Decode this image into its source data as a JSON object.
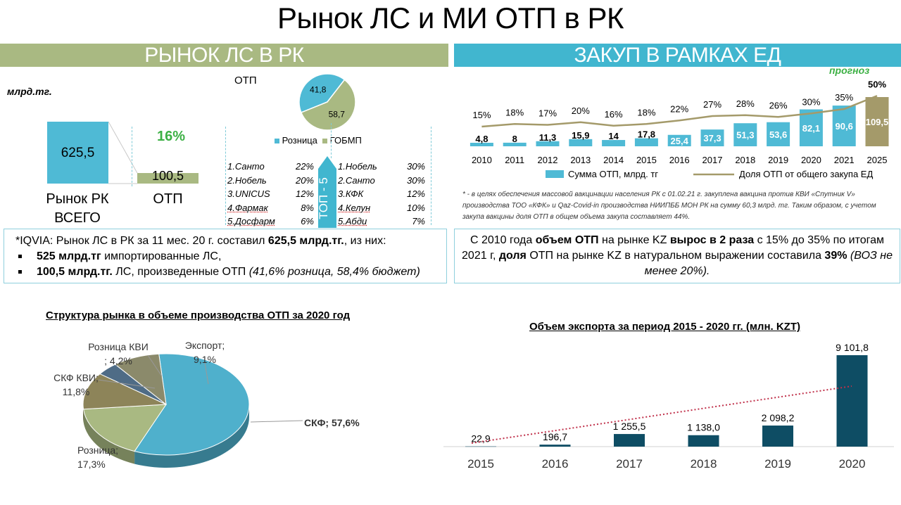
{
  "title": "Рынок ЛС и МИ ОТП в РК",
  "left": {
    "header": "РЫНОК ЛС В РК",
    "unit": "млрд.тг.",
    "total_value": "625,5",
    "total_label": "Рынок РК ВСЕГО",
    "otp_share": "16%",
    "otp_value": "100,5",
    "otp_label": "ОТП",
    "pie_title": "ОТП",
    "top5_label": "ТОП - 5",
    "top5_retail": [
      {
        "name": "1.Санто",
        "pct": "22%"
      },
      {
        "name": "2.Нобель",
        "pct": "20%"
      },
      {
        "name": "3.UNICUS",
        "pct": "12%"
      },
      {
        "name": "4.Фармак",
        "pct": "8%"
      },
      {
        "name": "5.Досфарм",
        "pct": "6%"
      }
    ],
    "top5_gobmp": [
      {
        "name": "1.Нобель",
        "pct": "30%"
      },
      {
        "name": "2.Санто",
        "pct": "30%"
      },
      {
        "name": "3.КФК",
        "pct": "12%"
      },
      {
        "name": "4.Келун",
        "pct": "10%"
      },
      {
        "name": "5.Абди",
        "pct": "7%"
      }
    ],
    "info": {
      "line1_pre": "*IQVIA: Рынок ЛС в РК за 11 мес. 20 г. составил ",
      "line1_bold": "625,5 млрд.тг.",
      "line1_post": ", из них:",
      "b1_bold": "525 млрд.тг",
      "b1_rest": " импортированные ЛС,",
      "b2_bold": "100,5 млрд.тг.",
      "b2_rest": " ЛС, произведенные ОТП ",
      "b2_ital": "(41,6% розница, 58,4% бюджет)"
    }
  },
  "right": {
    "header": "ЗАКУП В РАМКАХ ЕД",
    "forecast": "прогноз",
    "footnote": "* - в целях обеспечения массовой вакцинации населения РК с 01.02.21 г. закуплена вакцина против КВИ «Спутник V» производства ТОО «КФК» и Qaz-Covid-in производства НИИПББ МОН РК на сумму 60,3 млрд. тг. Таким образом, с учетом закупа вакцины доля ОТП в общем объема закупа составляет 44%.",
    "info": {
      "p1": "С 2010 года ",
      "b1": "объем ОТП",
      "p2": " на рынке KZ ",
      "b2": "вырос в 2 раза",
      "p3": " с 15% до 35% по итогам 2021 г, ",
      "b3": "доля",
      "p4": " ОТП на рынке KZ в натуральном выражении составила ",
      "b4": "39%",
      "i1": " (ВОЗ не менее 20%)."
    }
  },
  "chart_data": [
    {
      "type": "pie",
      "title": "ОТП",
      "categories": [
        "Розница",
        "ГОБМП"
      ],
      "values": [
        41.8,
        58.7
      ],
      "labels": [
        "41,8",
        "58,7"
      ],
      "colors": [
        "#4fbad5",
        "#a9b982"
      ],
      "legend": "bottom"
    },
    {
      "type": "bar",
      "categories": [
        "2010",
        "2011",
        "2012",
        "2013",
        "2014",
        "2015",
        "2016",
        "2017",
        "2018",
        "2019",
        "2020",
        "2021",
        "2025"
      ],
      "series": [
        {
          "name": "Сумма ОТП, млрд. тг",
          "values": [
            4.8,
            8,
            11.3,
            15.9,
            14,
            17.8,
            25.4,
            37.3,
            51.3,
            53.6,
            82.1,
            90.6,
            109.5
          ],
          "labels": [
            "4,8",
            "8",
            "11,3",
            "15,9",
            "14",
            "17,8",
            "25,4",
            "37,3",
            "51,3",
            "53,6",
            "82,1",
            "90,6",
            "109,5"
          ],
          "color": "#4fbad5"
        },
        {
          "name": "Доля ОТП от общего закупа ЕД",
          "type": "line",
          "values": [
            15,
            18,
            17,
            20,
            16,
            18,
            22,
            27,
            28,
            26,
            30,
            35,
            50
          ],
          "labels": [
            "15%",
            "18%",
            "17%",
            "20%",
            "16%",
            "18%",
            "22%",
            "27%",
            "28%",
            "26%",
            "30%",
            "35%",
            "50%"
          ],
          "color": "#a49a6a"
        }
      ],
      "forecast_category": "2025",
      "forecast_color": "#a49a6a",
      "legend": "bottom"
    },
    {
      "type": "pie",
      "title": "Структура рынка в объеме производства ОТП за 2020 год",
      "categories": [
        "СКФ",
        "Розница",
        "СКФ КВИ",
        "Розница КВИ",
        "Экспорт"
      ],
      "values": [
        57.6,
        17.3,
        11.8,
        4.2,
        9.1
      ],
      "labels": [
        "СКФ; 57,6%",
        "Розница; 17,3%",
        "СКФ КВИ; 11,8%",
        "Розница КВИ ; 4,2%",
        "Экспорт; 9,1%"
      ],
      "colors": [
        "#4fb0cc",
        "#a9b982",
        "#8d8459",
        "#4f6c86",
        "#8b8a6b"
      ]
    },
    {
      "type": "bar",
      "title": "Объем экспорта за период 2015 - 2020 гг. (млн. KZT)",
      "categories": [
        "2015",
        "2016",
        "2017",
        "2018",
        "2019",
        "2020"
      ],
      "values": [
        22.9,
        196.7,
        1255.5,
        1138.0,
        2098.2,
        9101.8
      ],
      "labels": [
        "22,9",
        "196,7",
        "1 255,5",
        "1 138,0",
        "2 098,2",
        "9 101,8"
      ],
      "color": "#0e4d64",
      "trendline": "linear, dotted red"
    }
  ]
}
